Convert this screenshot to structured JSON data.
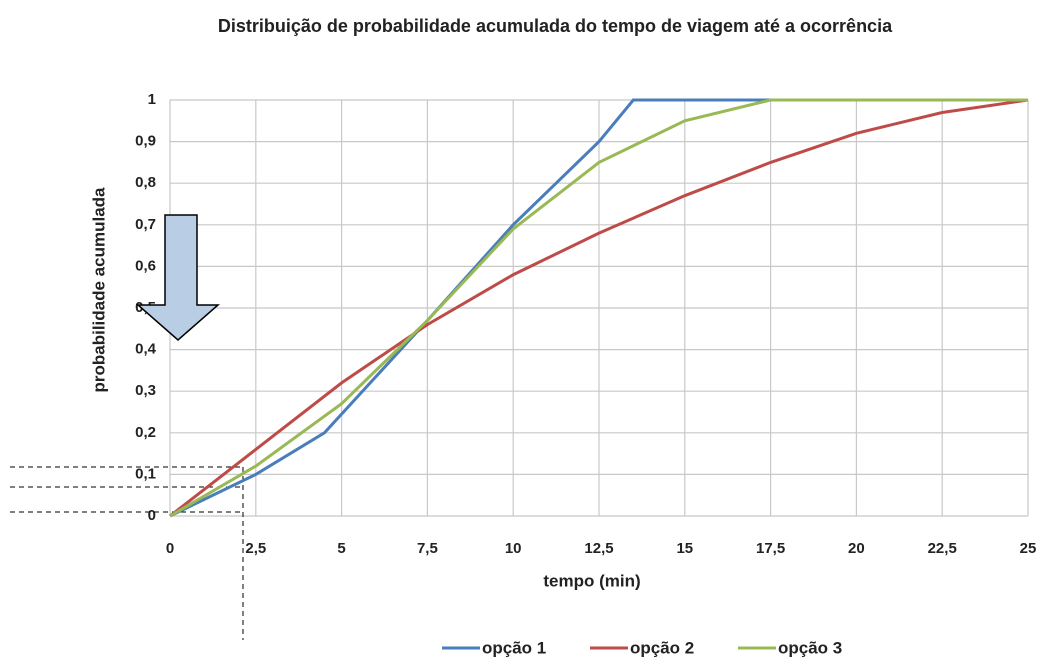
{
  "chart_data": {
    "type": "line",
    "title": "Distribuição de probabilidade acumulada do tempo de viagem até a ocorrência",
    "xlabel": "tempo (min)",
    "ylabel": "probabilidade acumulada",
    "xlim": [
      0,
      25
    ],
    "xticks": [
      0,
      {
        "value": 2.5,
        "label": "2,5"
      },
      5,
      {
        "value": 7.5,
        "label": "7,5"
      },
      10,
      {
        "value": 12.5,
        "label": "12,5"
      },
      15,
      {
        "value": 17.5,
        "label": "17,5"
      },
      20,
      {
        "value": 22.5,
        "label": "22,5"
      },
      25
    ],
    "ylim": [
      0,
      1
    ],
    "yticks": [
      0,
      {
        "value": 0.1,
        "label": "0,1"
      },
      {
        "value": 0.2,
        "label": "0,2"
      },
      {
        "value": 0.3,
        "label": "0,3"
      },
      {
        "value": 0.4,
        "label": "0,4"
      },
      {
        "value": 0.5,
        "label": "0,5"
      },
      {
        "value": 0.6,
        "label": "0,6"
      },
      {
        "value": 0.7,
        "label": "0,7"
      },
      {
        "value": 0.8,
        "label": "0,8"
      },
      {
        "value": 0.9,
        "label": "0,9"
      },
      1
    ],
    "grid": true,
    "legend": "bottom",
    "series": [
      {
        "name": "opção 1",
        "color": "#4a7ebb",
        "x": [
          0,
          2.5,
          4.5,
          7.5,
          10,
          12.5,
          13.5,
          25
        ],
        "values": [
          0,
          0.1,
          0.2,
          0.47,
          0.7,
          0.9,
          1,
          1
        ]
      },
      {
        "name": "opção 2",
        "color": "#be4b48",
        "x": [
          0,
          2.5,
          5,
          7.5,
          10,
          12.5,
          15,
          17.5,
          20,
          22.5,
          25
        ],
        "values": [
          0,
          0.16,
          0.32,
          0.46,
          0.58,
          0.68,
          0.77,
          0.85,
          0.92,
          0.97,
          1
        ]
      },
      {
        "name": "opção 3",
        "color": "#98b954",
        "x": [
          0,
          2.5,
          5,
          7.5,
          10,
          12.5,
          15,
          17.5,
          20,
          22.5,
          25
        ],
        "values": [
          0,
          0.12,
          0.27,
          0.47,
          0.69,
          0.85,
          0.95,
          1,
          1,
          1,
          1
        ]
      }
    ]
  }
}
